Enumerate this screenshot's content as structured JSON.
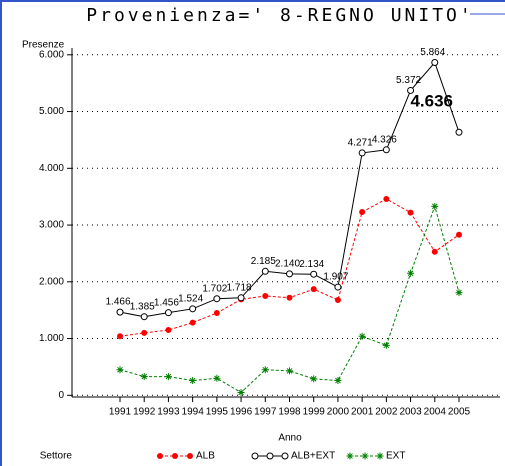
{
  "chart_data": {
    "type": "line",
    "title": "Provenienza=' 8-REGNO UNITO'",
    "y_label": "Presenze",
    "x_label": "Anno",
    "legend_title": "Settore",
    "categories": [
      "1991",
      "1992",
      "1993",
      "1994",
      "1995",
      "1996",
      "1997",
      "1998",
      "1999",
      "2000",
      "2001",
      "2002",
      "2003",
      "2004",
      "2005"
    ],
    "series": [
      {
        "name": "ALB",
        "color": "#ff0000",
        "marker": "dot",
        "dashed": true,
        "values": [
          1040,
          1100,
          1150,
          1280,
          1450,
          1690,
          1750,
          1720,
          1870,
          1680,
          3230,
          3460,
          3220,
          2530,
          2830
        ]
      },
      {
        "name": "ALB+EXT",
        "color": "#000000",
        "marker": "circle",
        "dashed": false,
        "values": [
          1466,
          1385,
          1456,
          1524,
          1702,
          1718,
          2185,
          2140,
          2134,
          1907,
          4271,
          4326,
          5372,
          5864,
          4636
        ],
        "value_labels": [
          "1.466",
          "1.385",
          "1.456",
          "1.524",
          "1.702",
          "1.718",
          "2.185",
          "2.140",
          "2.134",
          "1.907",
          "4.271",
          "4.326",
          "5.372",
          "5.864",
          "4.636"
        ]
      },
      {
        "name": "EXT",
        "color": "#008000",
        "marker": "star",
        "dashed": true,
        "values": [
          450,
          330,
          330,
          260,
          300,
          50,
          450,
          430,
          290,
          260,
          1040,
          880,
          2150,
          3330,
          1810
        ]
      }
    ],
    "ylim": [
      -30,
      6120
    ],
    "yticks": [
      0,
      {
        "value": 1000,
        "label": "1.000"
      },
      {
        "value": 2000,
        "label": "2.000"
      },
      {
        "value": 3000,
        "label": "3.000"
      },
      {
        "value": 4000,
        "label": "4.000"
      },
      {
        "value": 5000,
        "label": "5.000"
      },
      {
        "value": 6000,
        "label": "6.000"
      }
    ],
    "grid": true
  }
}
